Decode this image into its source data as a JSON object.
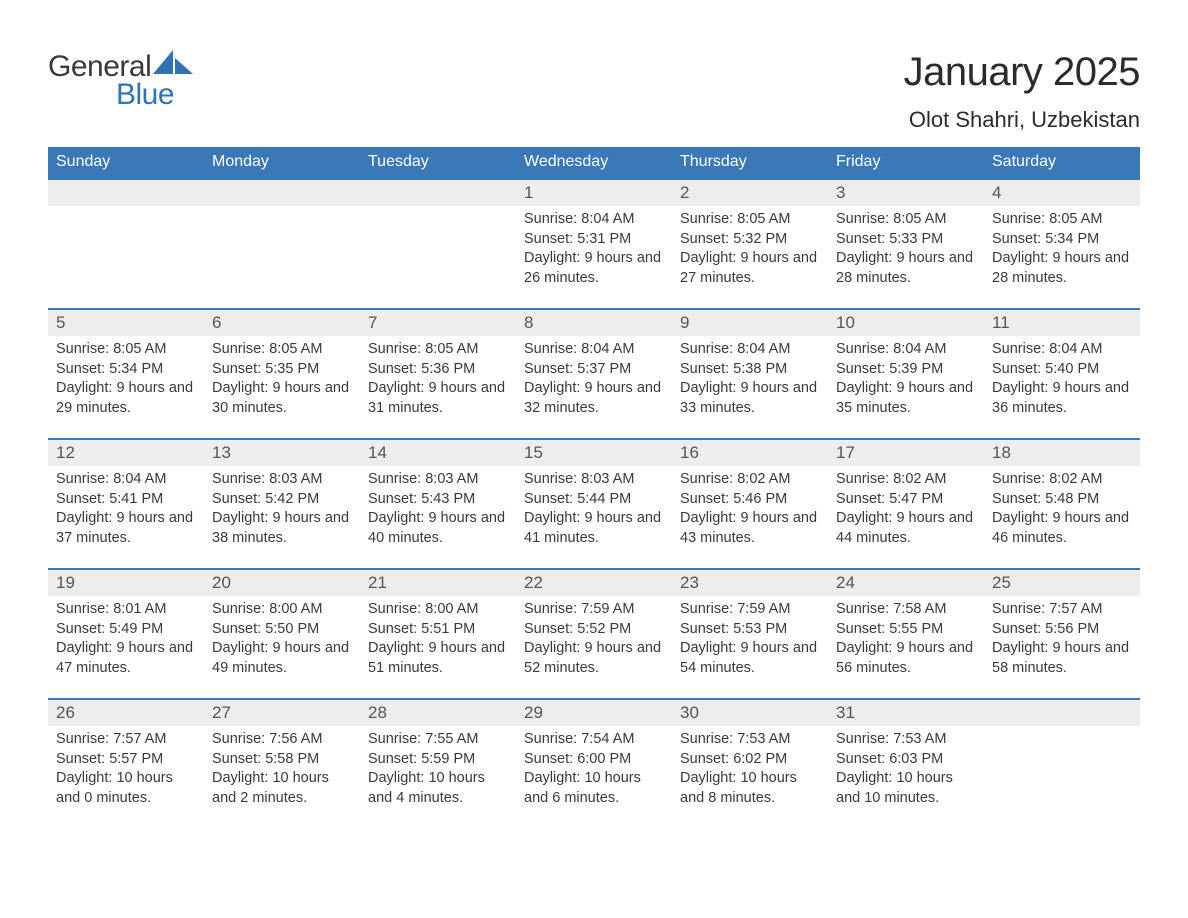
{
  "brand": {
    "word1": "General",
    "word2": "Blue",
    "text_color": "#3a3a3a",
    "accent_color": "#2f73b5"
  },
  "header": {
    "month_title": "January 2025",
    "location": "Olot Shahri, Uzbekistan"
  },
  "colors": {
    "weekday_header_bg": "#3a78b7",
    "weekday_header_text": "#ffffff",
    "daynum_bar_bg": "#ededed",
    "row_divider": "#3a78b7",
    "body_text": "#3a3a3a",
    "background": "#ffffff"
  },
  "weekdays": [
    "Sunday",
    "Monday",
    "Tuesday",
    "Wednesday",
    "Thursday",
    "Friday",
    "Saturday"
  ],
  "weeks": [
    [
      {
        "day": "",
        "sunrise": "",
        "sunset": "",
        "daylight": ""
      },
      {
        "day": "",
        "sunrise": "",
        "sunset": "",
        "daylight": ""
      },
      {
        "day": "",
        "sunrise": "",
        "sunset": "",
        "daylight": ""
      },
      {
        "day": "1",
        "sunrise": "Sunrise: 8:04 AM",
        "sunset": "Sunset: 5:31 PM",
        "daylight": "Daylight: 9 hours and 26 minutes."
      },
      {
        "day": "2",
        "sunrise": "Sunrise: 8:05 AM",
        "sunset": "Sunset: 5:32 PM",
        "daylight": "Daylight: 9 hours and 27 minutes."
      },
      {
        "day": "3",
        "sunrise": "Sunrise: 8:05 AM",
        "sunset": "Sunset: 5:33 PM",
        "daylight": "Daylight: 9 hours and 28 minutes."
      },
      {
        "day": "4",
        "sunrise": "Sunrise: 8:05 AM",
        "sunset": "Sunset: 5:34 PM",
        "daylight": "Daylight: 9 hours and 28 minutes."
      }
    ],
    [
      {
        "day": "5",
        "sunrise": "Sunrise: 8:05 AM",
        "sunset": "Sunset: 5:34 PM",
        "daylight": "Daylight: 9 hours and 29 minutes."
      },
      {
        "day": "6",
        "sunrise": "Sunrise: 8:05 AM",
        "sunset": "Sunset: 5:35 PM",
        "daylight": "Daylight: 9 hours and 30 minutes."
      },
      {
        "day": "7",
        "sunrise": "Sunrise: 8:05 AM",
        "sunset": "Sunset: 5:36 PM",
        "daylight": "Daylight: 9 hours and 31 minutes."
      },
      {
        "day": "8",
        "sunrise": "Sunrise: 8:04 AM",
        "sunset": "Sunset: 5:37 PM",
        "daylight": "Daylight: 9 hours and 32 minutes."
      },
      {
        "day": "9",
        "sunrise": "Sunrise: 8:04 AM",
        "sunset": "Sunset: 5:38 PM",
        "daylight": "Daylight: 9 hours and 33 minutes."
      },
      {
        "day": "10",
        "sunrise": "Sunrise: 8:04 AM",
        "sunset": "Sunset: 5:39 PM",
        "daylight": "Daylight: 9 hours and 35 minutes."
      },
      {
        "day": "11",
        "sunrise": "Sunrise: 8:04 AM",
        "sunset": "Sunset: 5:40 PM",
        "daylight": "Daylight: 9 hours and 36 minutes."
      }
    ],
    [
      {
        "day": "12",
        "sunrise": "Sunrise: 8:04 AM",
        "sunset": "Sunset: 5:41 PM",
        "daylight": "Daylight: 9 hours and 37 minutes."
      },
      {
        "day": "13",
        "sunrise": "Sunrise: 8:03 AM",
        "sunset": "Sunset: 5:42 PM",
        "daylight": "Daylight: 9 hours and 38 minutes."
      },
      {
        "day": "14",
        "sunrise": "Sunrise: 8:03 AM",
        "sunset": "Sunset: 5:43 PM",
        "daylight": "Daylight: 9 hours and 40 minutes."
      },
      {
        "day": "15",
        "sunrise": "Sunrise: 8:03 AM",
        "sunset": "Sunset: 5:44 PM",
        "daylight": "Daylight: 9 hours and 41 minutes."
      },
      {
        "day": "16",
        "sunrise": "Sunrise: 8:02 AM",
        "sunset": "Sunset: 5:46 PM",
        "daylight": "Daylight: 9 hours and 43 minutes."
      },
      {
        "day": "17",
        "sunrise": "Sunrise: 8:02 AM",
        "sunset": "Sunset: 5:47 PM",
        "daylight": "Daylight: 9 hours and 44 minutes."
      },
      {
        "day": "18",
        "sunrise": "Sunrise: 8:02 AM",
        "sunset": "Sunset: 5:48 PM",
        "daylight": "Daylight: 9 hours and 46 minutes."
      }
    ],
    [
      {
        "day": "19",
        "sunrise": "Sunrise: 8:01 AM",
        "sunset": "Sunset: 5:49 PM",
        "daylight": "Daylight: 9 hours and 47 minutes."
      },
      {
        "day": "20",
        "sunrise": "Sunrise: 8:00 AM",
        "sunset": "Sunset: 5:50 PM",
        "daylight": "Daylight: 9 hours and 49 minutes."
      },
      {
        "day": "21",
        "sunrise": "Sunrise: 8:00 AM",
        "sunset": "Sunset: 5:51 PM",
        "daylight": "Daylight: 9 hours and 51 minutes."
      },
      {
        "day": "22",
        "sunrise": "Sunrise: 7:59 AM",
        "sunset": "Sunset: 5:52 PM",
        "daylight": "Daylight: 9 hours and 52 minutes."
      },
      {
        "day": "23",
        "sunrise": "Sunrise: 7:59 AM",
        "sunset": "Sunset: 5:53 PM",
        "daylight": "Daylight: 9 hours and 54 minutes."
      },
      {
        "day": "24",
        "sunrise": "Sunrise: 7:58 AM",
        "sunset": "Sunset: 5:55 PM",
        "daylight": "Daylight: 9 hours and 56 minutes."
      },
      {
        "day": "25",
        "sunrise": "Sunrise: 7:57 AM",
        "sunset": "Sunset: 5:56 PM",
        "daylight": "Daylight: 9 hours and 58 minutes."
      }
    ],
    [
      {
        "day": "26",
        "sunrise": "Sunrise: 7:57 AM",
        "sunset": "Sunset: 5:57 PM",
        "daylight": "Daylight: 10 hours and 0 minutes."
      },
      {
        "day": "27",
        "sunrise": "Sunrise: 7:56 AM",
        "sunset": "Sunset: 5:58 PM",
        "daylight": "Daylight: 10 hours and 2 minutes."
      },
      {
        "day": "28",
        "sunrise": "Sunrise: 7:55 AM",
        "sunset": "Sunset: 5:59 PM",
        "daylight": "Daylight: 10 hours and 4 minutes."
      },
      {
        "day": "29",
        "sunrise": "Sunrise: 7:54 AM",
        "sunset": "Sunset: 6:00 PM",
        "daylight": "Daylight: 10 hours and 6 minutes."
      },
      {
        "day": "30",
        "sunrise": "Sunrise: 7:53 AM",
        "sunset": "Sunset: 6:02 PM",
        "daylight": "Daylight: 10 hours and 8 minutes."
      },
      {
        "day": "31",
        "sunrise": "Sunrise: 7:53 AM",
        "sunset": "Sunset: 6:03 PM",
        "daylight": "Daylight: 10 hours and 10 minutes."
      },
      {
        "day": "",
        "sunrise": "",
        "sunset": "",
        "daylight": ""
      }
    ]
  ]
}
